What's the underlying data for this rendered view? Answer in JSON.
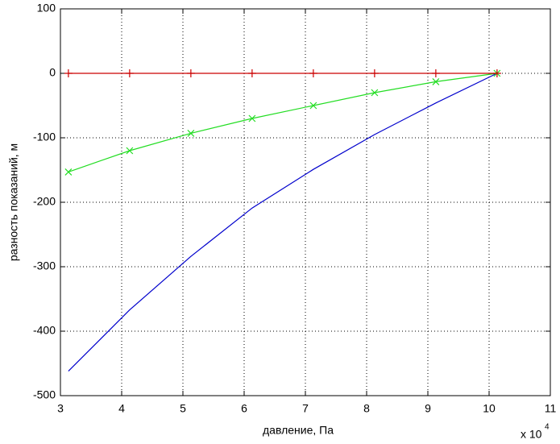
{
  "chart_data": {
    "type": "line",
    "x_label": "давление, Па",
    "y_label": "разность показаний, м",
    "x_multiplier": {
      "base": "x 10",
      "exponent": "4"
    },
    "x": [
      3.13,
      4.13,
      5.13,
      6.13,
      7.13,
      8.13,
      9.13,
      10.13
    ],
    "series": [
      {
        "color": "#0000cc",
        "marker": "none",
        "values": [
          -462,
          -367,
          -284,
          -209,
          -149,
          -95,
          -46,
          0
        ]
      },
      {
        "color": "#22dd22",
        "marker": "x",
        "values": [
          -153,
          -120,
          -93,
          -70,
          -50,
          -30,
          -13,
          0
        ]
      },
      {
        "color": "#cc0000",
        "marker": "+",
        "values": [
          0,
          0,
          0,
          0,
          0,
          0,
          0,
          0
        ]
      }
    ],
    "xlim": [
      3,
      11
    ],
    "xticks": [
      3,
      4,
      5,
      6,
      7,
      8,
      9,
      10,
      11
    ],
    "ylim": [
      -500,
      100
    ],
    "yticks": [
      -500,
      -400,
      -300,
      -200,
      -100,
      0,
      100
    ],
    "grid": true
  }
}
